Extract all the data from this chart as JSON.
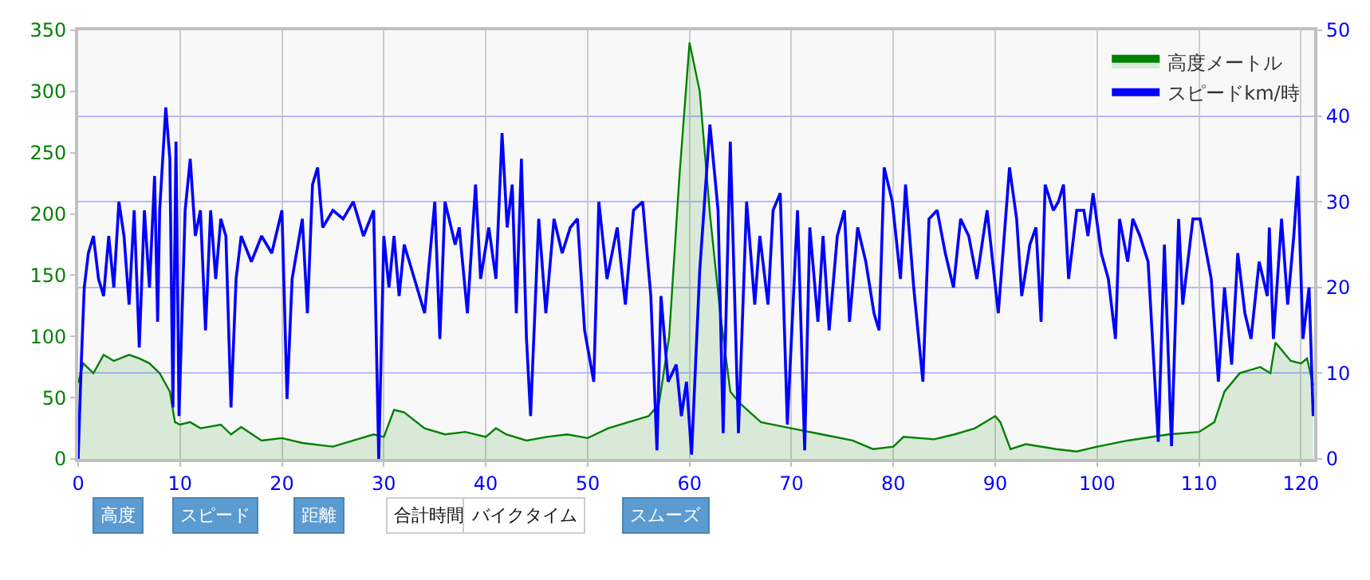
{
  "chart_data": {
    "type": "line",
    "xlim": [
      0,
      121.3
    ],
    "xticks": [
      0,
      10,
      20,
      30,
      40,
      50,
      60,
      70,
      80,
      90,
      100,
      110,
      120
    ],
    "ylim": [
      0,
      350
    ],
    "yticks": [
      0,
      50,
      100,
      150,
      200,
      250,
      300,
      350
    ],
    "y2lim": [
      0,
      50
    ],
    "y2ticks": [
      0,
      10,
      20,
      30,
      40,
      50
    ],
    "grid": true,
    "legend": "top right",
    "annotations": [
      "高度",
      "スピード",
      "距離",
      "合計時間",
      "バイクタイム",
      "スムーズ"
    ],
    "series": [
      {
        "name": "高度メートル",
        "type": "area",
        "color": "#008000",
        "x": [
          0,
          0.5,
          1.5,
          2.5,
          3.5,
          5,
          6,
          7,
          8,
          9,
          9.5,
          10,
          11,
          12,
          14,
          15,
          16,
          18,
          20,
          22,
          25,
          27,
          29,
          30,
          31,
          32,
          34,
          36,
          38,
          40,
          41,
          42,
          44,
          46,
          48,
          50,
          52,
          54,
          56,
          57,
          58,
          59,
          60,
          61,
          62,
          63,
          64,
          65,
          67,
          70,
          73,
          76,
          78,
          80,
          81,
          84,
          86,
          88,
          90,
          90.5,
          91.5,
          93,
          96,
          98,
          100,
          103,
          107,
          110,
          111.5,
          112.5,
          114,
          116,
          117,
          117.5,
          119,
          120,
          120.6,
          121.2
        ],
        "values": [
          62,
          78,
          70,
          85,
          80,
          85,
          82,
          78,
          70,
          55,
          30,
          28,
          30,
          25,
          28,
          20,
          26,
          15,
          17,
          13,
          10,
          15,
          20,
          18,
          40,
          38,
          25,
          20,
          22,
          18,
          25,
          20,
          15,
          18,
          20,
          17,
          25,
          30,
          35,
          45,
          100,
          230,
          340,
          300,
          200,
          120,
          55,
          45,
          30,
          25,
          20,
          15,
          8,
          10,
          18,
          16,
          20,
          25,
          35,
          30,
          8,
          12,
          8,
          6,
          10,
          15,
          20,
          22,
          30,
          55,
          70,
          75,
          70,
          95,
          80,
          78,
          82,
          60
        ]
      },
      {
        "name": "スピードkm/時",
        "axis": "y2",
        "color": "#0000ff",
        "x": [
          0,
          0.3,
          0.6,
          1,
          1.5,
          2,
          2.5,
          3,
          3.5,
          4,
          4.5,
          5,
          5.5,
          6,
          6.5,
          7,
          7.5,
          7.8,
          8,
          8.6,
          9,
          9.3,
          9.6,
          9.9,
          10.5,
          11,
          11.5,
          12,
          12.5,
          13,
          13.5,
          14,
          14.5,
          15,
          15.5,
          16,
          17,
          18,
          19,
          20,
          20.5,
          21,
          22,
          22.5,
          23,
          23.5,
          24,
          25,
          26,
          27,
          28,
          29,
          29.5,
          30,
          30.5,
          31,
          31.5,
          32,
          33,
          34,
          35,
          35.5,
          36,
          37,
          37.4,
          38.2,
          39,
          39.5,
          40.3,
          41,
          41.6,
          42.1,
          42.6,
          43,
          43.5,
          44,
          44.4,
          45.2,
          45.9,
          46.7,
          47.5,
          48.3,
          49,
          49.7,
          50.6,
          51.1,
          51.9,
          52.9,
          53.7,
          54.5,
          55.4,
          56.2,
          56.8,
          57.2,
          57.9,
          58.7,
          59.2,
          59.7,
          60.2,
          61,
          62,
          62.8,
          63.3,
          64,
          64.8,
          65.6,
          66.4,
          66.9,
          67.7,
          68.2,
          68.9,
          69.6,
          70.6,
          71.3,
          71.8,
          72.6,
          73.1,
          73.7,
          74.5,
          75.2,
          75.7,
          76.5,
          77.3,
          78.1,
          78.6,
          79.1,
          79.9,
          80.7,
          81.2,
          82,
          82.9,
          83.5,
          84.3,
          85.1,
          85.9,
          86.6,
          87.4,
          88.2,
          89.2,
          90.3,
          91.4,
          92.1,
          92.6,
          93.4,
          94,
          94.5,
          94.9,
          95.7,
          96.2,
          96.7,
          97.2,
          98,
          98.7,
          99.1,
          99.6,
          100.4,
          101.1,
          101.8,
          102.2,
          103,
          103.5,
          104.2,
          105,
          106,
          106.6,
          107.3,
          108,
          108.4,
          109.4,
          110.1,
          111.2,
          111.9,
          112.5,
          113.2,
          113.8,
          114.5,
          115.1,
          115.9,
          116.7,
          116.9,
          117.3,
          118.1,
          118.7,
          119.3,
          119.7,
          120.2,
          120.8,
          121.2
        ],
        "values": [
          0,
          11,
          20,
          24,
          26,
          21,
          19,
          26,
          20,
          30,
          26,
          18,
          29,
          13,
          29,
          20,
          33,
          16,
          29,
          41,
          35,
          6,
          37,
          5,
          29,
          35,
          26,
          29,
          15,
          29,
          21,
          28,
          26,
          6,
          21,
          26,
          23,
          26,
          24,
          29,
          7,
          21,
          28,
          17,
          32,
          34,
          27,
          29,
          28,
          30,
          26,
          29,
          0,
          26,
          20,
          26,
          19,
          25,
          21,
          17,
          30,
          14,
          30,
          25,
          27,
          17,
          32,
          21,
          27,
          21,
          38,
          27,
          32,
          17,
          35,
          14,
          5,
          28,
          17,
          28,
          24,
          27,
          28,
          15,
          9,
          30,
          21,
          27,
          18,
          29,
          30,
          19,
          1,
          19,
          9,
          11,
          5,
          9,
          0.5,
          22,
          39,
          29,
          3,
          37,
          3,
          30,
          18,
          26,
          18,
          29,
          31,
          4,
          29,
          1,
          27,
          16,
          26,
          15,
          26,
          29,
          16,
          27,
          23,
          17,
          15,
          34,
          30,
          21,
          32,
          20,
          9,
          28,
          29,
          24,
          20,
          28,
          26,
          21,
          29,
          17,
          34,
          28,
          19,
          25,
          27,
          16,
          32,
          29,
          30,
          32,
          21,
          29,
          29,
          26,
          31,
          24,
          21,
          14,
          28,
          23,
          28,
          26,
          23,
          2,
          25,
          1.5,
          28,
          18,
          28,
          28,
          21,
          9,
          20,
          11,
          24,
          17,
          14,
          23,
          19,
          27,
          14,
          28,
          18,
          26,
          33,
          14,
          20,
          5
        ]
      }
    ]
  }
}
